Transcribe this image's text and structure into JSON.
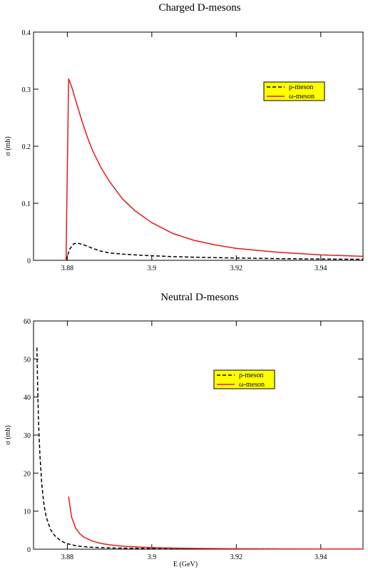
{
  "chart_data": [
    {
      "type": "line",
      "title": "Charged D-mesons",
      "xlabel": "",
      "ylabel": "σ (mb)",
      "xlim": [
        3.872,
        3.95
      ],
      "ylim": [
        0,
        0.4
      ],
      "xticks": [
        3.88,
        3.9,
        3.92,
        3.94
      ],
      "xtick_labels": [
        "3.88",
        "3.9",
        "3.92",
        "3.94"
      ],
      "yticks": [
        0,
        0.1,
        0.2,
        0.3,
        0.4
      ],
      "ytick_labels": [
        "0",
        "0.1",
        "0.2",
        "0.3",
        "0.4"
      ],
      "grid": false,
      "legend": {
        "position": "top-right",
        "background": "#ffff00"
      },
      "series": [
        {
          "name": "ρ-meson",
          "color": "#000000",
          "dash": "dashed",
          "x": [
            3.8797,
            3.8806,
            3.8815,
            3.8825,
            3.884,
            3.886,
            3.888,
            3.89,
            3.893,
            3.896,
            3.9,
            3.905,
            3.91,
            3.915,
            3.92,
            3.93,
            3.94,
            3.95
          ],
          "y": [
            0,
            0.02,
            0.029,
            0.03,
            0.027,
            0.021,
            0.016,
            0.013,
            0.011,
            0.0095,
            0.008,
            0.0065,
            0.0055,
            0.0047,
            0.004,
            0.003,
            0.0023,
            0.0018
          ]
        },
        {
          "name": "ω-meson",
          "color": "#e31a1c",
          "dash": "solid",
          "x": [
            3.8797,
            3.8803,
            3.881,
            3.882,
            3.883,
            3.884,
            3.885,
            3.886,
            3.888,
            3.89,
            3.893,
            3.896,
            3.9,
            3.905,
            3.91,
            3.915,
            3.92,
            3.93,
            3.94,
            3.95
          ],
          "y": [
            0,
            0.318,
            0.305,
            0.28,
            0.255,
            0.232,
            0.211,
            0.192,
            0.162,
            0.138,
            0.108,
            0.087,
            0.066,
            0.047,
            0.035,
            0.027,
            0.021,
            0.014,
            0.0095,
            0.007
          ]
        }
      ]
    },
    {
      "type": "line",
      "title": "Neutral D-mesons",
      "xlabel": "E (GeV)",
      "ylabel": "σ (mb)",
      "xlim": [
        3.872,
        3.95
      ],
      "ylim": [
        0,
        60
      ],
      "xticks": [
        3.88,
        3.9,
        3.92,
        3.94
      ],
      "xtick_labels": [
        "3.88",
        "3.9",
        "3.92",
        "3.94"
      ],
      "yticks": [
        0,
        10,
        20,
        30,
        40,
        50,
        60
      ],
      "ytick_labels": [
        "0",
        "10",
        "20",
        "30",
        "40",
        "50",
        "60"
      ],
      "grid": false,
      "legend": {
        "position": "top-right",
        "background": "#ffff00"
      },
      "series": [
        {
          "name": "ρ-meson",
          "color": "#000000",
          "dash": "dashed",
          "x": [
            3.8728,
            3.873,
            3.8732,
            3.8735,
            3.874,
            3.8745,
            3.875,
            3.876,
            3.877,
            3.878,
            3.879,
            3.88,
            3.882,
            3.885,
            3.89,
            3.9,
            3.91,
            3.92,
            3.93,
            3.95
          ],
          "y": [
            53,
            42,
            33,
            25,
            16.5,
            11.5,
            8.5,
            5.2,
            3.6,
            2.6,
            1.9,
            1.45,
            0.9,
            0.55,
            0.32,
            0.16,
            0.1,
            0.07,
            0.05,
            0.03
          ]
        },
        {
          "name": "ω-meson",
          "color": "#e31a1c",
          "dash": "solid",
          "x": [
            3.8803,
            3.881,
            3.882,
            3.883,
            3.884,
            3.886,
            3.888,
            3.89,
            3.893,
            3.896,
            3.9,
            3.905,
            3.91,
            3.92,
            3.93,
            3.94,
            3.95
          ],
          "y": [
            13.8,
            8.5,
            5.5,
            4.0,
            3.1,
            2.1,
            1.5,
            1.15,
            0.8,
            0.6,
            0.42,
            0.28,
            0.2,
            0.12,
            0.08,
            0.06,
            0.04
          ]
        }
      ]
    }
  ]
}
